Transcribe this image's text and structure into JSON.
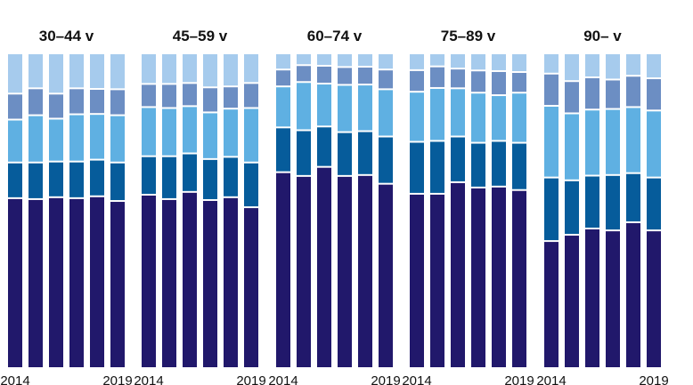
{
  "chart_data": {
    "type": "bar",
    "stacked": true,
    "normalized": true,
    "ylim": [
      0,
      100
    ],
    "grid": false,
    "legend": "none",
    "series_colors": [
      "#21186b",
      "#065c9b",
      "#5fb0e2",
      "#6c8ec3",
      "#a6cbed"
    ],
    "panels": [
      {
        "title": "30–44 v",
        "x_tick_labels": [
          "2014",
          "2019"
        ],
        "stacks": [
          [
            54.3,
            11.4,
            13.7,
            8.3,
            12.3
          ],
          [
            54.0,
            11.7,
            15.1,
            8.6,
            10.6
          ],
          [
            54.6,
            11.4,
            13.7,
            8.0,
            12.3
          ],
          [
            54.3,
            11.7,
            15.1,
            8.3,
            10.6
          ],
          [
            54.9,
            11.7,
            14.6,
            8.0,
            10.8
          ],
          [
            53.4,
            12.3,
            15.1,
            8.3,
            10.9
          ]
        ]
      },
      {
        "title": "45–59 v",
        "x_tick_labels": [
          "2014",
          "2019"
        ],
        "stacks": [
          [
            55.4,
            12.3,
            15.7,
            7.4,
            9.2
          ],
          [
            54.0,
            13.7,
            15.4,
            7.7,
            9.2
          ],
          [
            56.3,
            12.3,
            15.1,
            7.4,
            8.9
          ],
          [
            53.7,
            13.1,
            14.9,
            8.0,
            10.3
          ],
          [
            54.6,
            12.9,
            15.4,
            7.1,
            10.0
          ],
          [
            51.4,
            14.3,
            17.4,
            8.0,
            8.9
          ]
        ]
      },
      {
        "title": "60–74 v",
        "x_tick_labels": [
          "2014",
          "2019"
        ],
        "stacks": [
          [
            62.6,
            14.3,
            13.1,
            5.4,
            4.6
          ],
          [
            61.4,
            14.6,
            15.4,
            5.4,
            3.2
          ],
          [
            64.3,
            12.9,
            13.7,
            5.7,
            3.4
          ],
          [
            61.4,
            14.0,
            15.1,
            5.7,
            3.8
          ],
          [
            61.7,
            14.0,
            14.9,
            5.7,
            3.7
          ],
          [
            58.9,
            15.1,
            15.1,
            6.3,
            4.6
          ]
        ]
      },
      {
        "title": "75–89 v",
        "x_tick_labels": [
          "2014",
          "2019"
        ],
        "stacks": [
          [
            55.7,
            16.6,
            16.0,
            6.9,
            4.8
          ],
          [
            55.7,
            16.9,
            16.9,
            6.9,
            3.6
          ],
          [
            59.4,
            14.6,
            15.4,
            6.3,
            4.3
          ],
          [
            57.7,
            14.3,
            16.0,
            7.1,
            4.9
          ],
          [
            58.0,
            14.6,
            14.6,
            7.7,
            5.1
          ],
          [
            56.9,
            15.1,
            16.0,
            6.6,
            5.4
          ]
        ]
      },
      {
        "title": "90– v",
        "x_tick_labels": [
          "2014",
          "2019"
        ],
        "stacks": [
          [
            40.6,
            20.3,
            22.9,
            10.3,
            5.9
          ],
          [
            42.6,
            17.4,
            21.4,
            10.3,
            8.3
          ],
          [
            44.6,
            16.9,
            21.1,
            10.3,
            7.1
          ],
          [
            44.0,
            17.7,
            21.1,
            9.4,
            7.8
          ],
          [
            46.6,
            15.7,
            21.1,
            10.0,
            6.6
          ],
          [
            44.0,
            16.9,
            21.4,
            10.3,
            7.4
          ]
        ]
      }
    ]
  }
}
